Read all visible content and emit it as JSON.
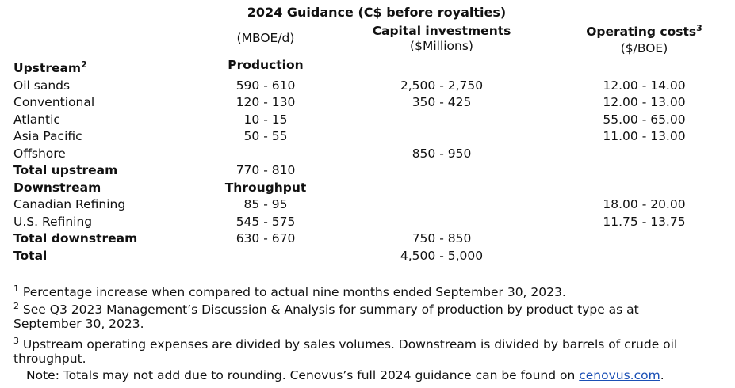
{
  "title": "2024 Guidance (C$ before royalties)",
  "headers": {
    "production_unit": "(MBOE/d)",
    "capital": "Capital investments",
    "capital_unit": "($Millions)",
    "operating": "Operating costs",
    "operating_sup": "3",
    "operating_unit": "($/BOE)"
  },
  "sections": {
    "upstream": {
      "label": "Upstream",
      "label_sup": "2",
      "column_heading": "Production"
    },
    "downstream": {
      "label": "Downstream",
      "column_heading": "Throughput"
    }
  },
  "rows": [
    {
      "label": "Oil sands",
      "bold": false,
      "production": "590 - 610",
      "capital": "2,500 - 2,750",
      "operating": "12.00 - 14.00"
    },
    {
      "label": "Conventional",
      "bold": false,
      "production": "120 - 130",
      "capital": "350 - 425",
      "operating": "12.00 - 13.00"
    },
    {
      "label": "Atlantic",
      "bold": false,
      "production": "10 - 15",
      "capital": "",
      "operating": "55.00 - 65.00"
    },
    {
      "label": "Asia Pacific",
      "bold": false,
      "production": "50 - 55",
      "capital": "",
      "operating": "11.00 - 13.00"
    },
    {
      "label": "Offshore",
      "bold": false,
      "production": "",
      "capital": "850 - 950",
      "operating": ""
    },
    {
      "label": "Total upstream",
      "bold": true,
      "production": "770 - 810",
      "capital": "",
      "operating": ""
    },
    {
      "label": "Canadian Refining",
      "bold": false,
      "production": "85 - 95",
      "capital": "",
      "operating": "18.00 - 20.00"
    },
    {
      "label": "U.S. Refining",
      "bold": false,
      "production": "545 - 575",
      "capital": "",
      "operating": "11.75 - 13.75"
    },
    {
      "label": "Total downstream",
      "bold": true,
      "production": "630 - 670",
      "capital": "750 - 850",
      "operating": ""
    },
    {
      "label": "Total",
      "bold": true,
      "production": "",
      "capital": "4,500 - 5,000",
      "operating": ""
    }
  ],
  "footnotes": [
    {
      "sup": "1",
      "text": " Percentage increase when compared to actual nine months ended September 30, 2023."
    },
    {
      "sup": "2",
      "text": " See Q3 2023 Management’s Discussion & Analysis for summary of production by product type as at September 30, 2023."
    },
    {
      "sup": "3",
      "text": " Upstream operating expenses are divided by sales volumes. Downstream is divided by barrels of crude oil throughput."
    }
  ],
  "note": {
    "text": "Note: Totals may not add due to rounding. Cenovus’s full 2024 guidance can be found on ",
    "link_text": "cenovus.com",
    "suffix": "."
  }
}
